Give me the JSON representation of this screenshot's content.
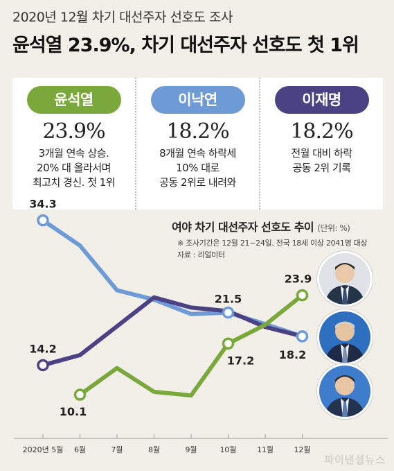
{
  "header": {
    "supertitle": "2020년 12월 차기 대선주자 선호도 조사",
    "title": "윤석열 23.9%, 차기 대선주자 선호도 첫 1위"
  },
  "cards": [
    {
      "name": "윤석열",
      "pct": "23.9%",
      "color": "#7aa83a",
      "lines": [
        "3개월 연속 상승.",
        "20% 대 올라서며",
        "최고치 경신. 첫 1위"
      ]
    },
    {
      "name": "이낙연",
      "pct": "18.2%",
      "color": "#6e9bd5",
      "lines": [
        "8개월 연속 하락세",
        "10% 대로",
        "공동 2위로 내려와"
      ]
    },
    {
      "name": "이재명",
      "pct": "18.2%",
      "color": "#4a4283",
      "lines": [
        "전월 대비 하락",
        "공동 2위 기록"
      ]
    }
  ],
  "chart": {
    "title": "여야 차기 대선주자 선호도 추이",
    "unit": "(단위: %)",
    "note1": "※ 조사기간은 12월 21~24일. 전국 18세 이상 2041명 대상",
    "note2": "자료 : 리얼미터"
  },
  "chart_data": {
    "type": "line",
    "categories": [
      "2020년 5월",
      "6월",
      "7월",
      "8월",
      "9월",
      "10월",
      "11월",
      "12월"
    ],
    "ylim": [
      5,
      36
    ],
    "grid": false,
    "series": [
      {
        "name": "이낙연",
        "color": "#6e9bd5",
        "values": [
          34.3,
          30.8,
          24.6,
          23.3,
          21.3,
          21.5,
          19.9,
          18.2
        ],
        "labels": {
          "0": "34.3",
          "5": "21.5",
          "7": "18.2"
        },
        "markers": [
          0,
          5,
          7
        ]
      },
      {
        "name": "이재명",
        "color": "#4a4283",
        "values": [
          14.2,
          15.6,
          19.6,
          23.6,
          22.2,
          21.7,
          19.5,
          18.2
        ],
        "labels": {
          "0": "14.2"
        },
        "markers": [
          0
        ]
      },
      {
        "name": "윤석열",
        "color": "#7aa83a",
        "values": [
          null,
          10.1,
          13.8,
          10.5,
          10.0,
          17.2,
          19.8,
          23.9
        ],
        "labels": {
          "1": "10.1",
          "5": "17.2",
          "7": "23.9"
        },
        "markers": [
          1,
          5,
          7
        ]
      }
    ]
  },
  "photos": [
    {
      "name": "윤석열",
      "suit": "#243449",
      "tie": "#3a4e7a",
      "bg": "#dfe3e8"
    },
    {
      "name": "이낙연",
      "suit": "#1f2b46",
      "tie": "#7b8fb3",
      "bg": "#2f6fc0"
    },
    {
      "name": "이재명",
      "suit": "#22324f",
      "tie": "#5b7fb5",
      "bg": "#3e7ccc"
    }
  ],
  "watermark": "파이낸셜뉴스"
}
